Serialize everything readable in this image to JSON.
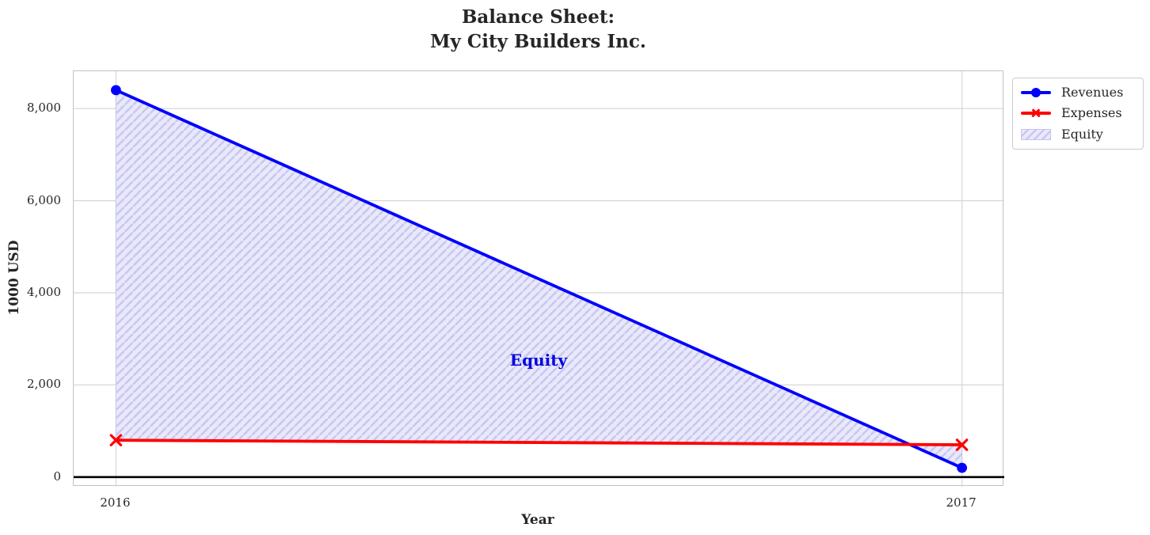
{
  "title": {
    "line1": "Balance Sheet:",
    "line2": "My City Builders Inc."
  },
  "chart_data": {
    "type": "line",
    "x": [
      2016,
      2017
    ],
    "series": [
      {
        "name": "Revenues",
        "values": [
          8400,
          200
        ],
        "color": "#0000ff",
        "marker": "circle"
      },
      {
        "name": "Expenses",
        "values": [
          800,
          700
        ],
        "color": "#ff0000",
        "marker": "x"
      }
    ],
    "fill_between": {
      "name": "Equity",
      "between": [
        "Revenues",
        "Expenses"
      ],
      "fill_color": "#e9e9fb",
      "hatch_color": "#c8c8f0",
      "hatch": "//"
    },
    "annotation": {
      "text": "Equity",
      "x": 2016.5,
      "y": 2500,
      "color": "#0202e0"
    },
    "xlabel": "Year",
    "ylabel": "1000 USD",
    "xticks": [
      2016,
      2017
    ],
    "xtick_labels": [
      "2016",
      "2017"
    ],
    "yticks": [
      0,
      2000,
      4000,
      6000,
      8000
    ],
    "ytick_labels": [
      "0",
      "2,000",
      "4,000",
      "6,000",
      "8,000"
    ],
    "xlim": [
      2015.95,
      2017.05
    ],
    "ylim": [
      -210,
      8810
    ],
    "grid": true,
    "zero_line": true,
    "grid_color": "#d8d8d8",
    "zero_line_color": "#000000",
    "legend_position": "upper right outside"
  }
}
